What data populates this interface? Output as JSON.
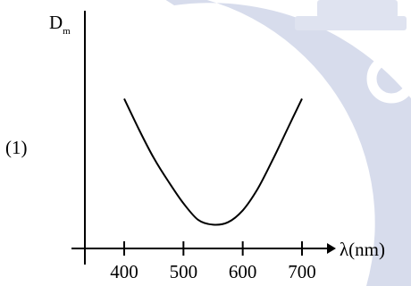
{
  "chart_data": {
    "type": "line",
    "curve_label": "(1)",
    "ylabel": {
      "main": "D",
      "sub": "m"
    },
    "xlabel": "λ(nm)",
    "x_ticks": [
      400,
      500,
      600,
      700
    ],
    "x": [
      400,
      425,
      450,
      475,
      500,
      525,
      550,
      575,
      600,
      625,
      650,
      675,
      700
    ],
    "y": [
      0.63,
      0.5,
      0.38,
      0.28,
      0.19,
      0.12,
      0.1,
      0.11,
      0.16,
      0.25,
      0.37,
      0.5,
      0.63
    ],
    "xlim": [
      330,
      720
    ],
    "ylim": [
      0,
      1
    ],
    "grid": false,
    "colors": {
      "line": "#000000",
      "watermark": "#d7dcec"
    }
  }
}
